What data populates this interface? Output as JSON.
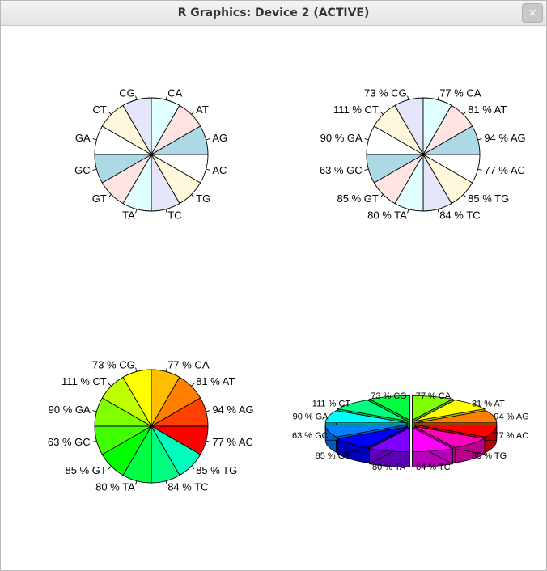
{
  "window": {
    "title": "R Graphics: Device 2 (ACTIVE)",
    "close_label": "×",
    "close_icon": "close-icon"
  },
  "chart_data": [
    {
      "type": "pie",
      "style": "2d",
      "categories": [
        "AC",
        "TG",
        "TC",
        "TA",
        "GT",
        "GC",
        "GA",
        "CT",
        "CG",
        "CA",
        "AT",
        "AG"
      ],
      "labels": [
        "AC",
        "TG",
        "TC",
        "TA",
        "GT",
        "GC",
        "GA",
        "CT",
        "CG",
        "CA",
        "AT",
        "AG"
      ],
      "values": [
        1,
        1,
        1,
        1,
        1,
        1,
        1,
        1,
        1,
        1,
        1,
        1
      ],
      "colors": [
        "#ffffff",
        "#fff8dc",
        "#e6e6fa",
        "#e0ffff",
        "#ffe4e1",
        "#add8e6",
        "#ffffff",
        "#fff8dc",
        "#e6e6fa",
        "#e0ffff",
        "#ffe4e1",
        "#add8e6"
      ],
      "start_angle": 0,
      "direction": "clockwise"
    },
    {
      "type": "pie",
      "style": "2d",
      "categories": [
        "AC",
        "TG",
        "TC",
        "TA",
        "GT",
        "GC",
        "GA",
        "CT",
        "CG",
        "CA",
        "AT",
        "AG"
      ],
      "labels": [
        "77 % AC",
        "85 % TG",
        "84 % TC",
        "80 % TA",
        "85 % GT",
        "63 % GC",
        "90 % GA",
        "111 % CT",
        "73 % CG",
        "77 % CA",
        "81 % AT",
        "94 % AG"
      ],
      "values": [
        1,
        1,
        1,
        1,
        1,
        1,
        1,
        1,
        1,
        1,
        1,
        1
      ],
      "colors": [
        "#ffffff",
        "#fff8dc",
        "#e6e6fa",
        "#e0ffff",
        "#ffe4e1",
        "#add8e6",
        "#ffffff",
        "#fff8dc",
        "#e6e6fa",
        "#e0ffff",
        "#ffe4e1",
        "#add8e6"
      ],
      "start_angle": 0,
      "direction": "clockwise"
    },
    {
      "type": "pie",
      "style": "2d",
      "categories": [
        "AC",
        "TG",
        "TC",
        "TA",
        "GT",
        "GC",
        "GA",
        "CT",
        "CG",
        "CA",
        "AT",
        "AG"
      ],
      "labels": [
        "77 % AC",
        "85 % TG",
        "84 % TC",
        "80 % TA",
        "85 % GT",
        "63 % GC",
        "90 % GA",
        "111 % CT",
        "73 % CG",
        "77 % CA",
        "81 % AT",
        "94 % AG"
      ],
      "values": [
        1,
        1,
        1,
        1,
        1,
        1,
        1,
        1,
        1,
        1,
        1,
        1
      ],
      "colors": [
        "#ff0000",
        "#00ffbf",
        "#00ff80",
        "#00ff40",
        "#00ff00",
        "#40ff00",
        "#80ff00",
        "#bfff00",
        "#ffff00",
        "#ffbf00",
        "#ff8000",
        "#ff4000"
      ],
      "start_angle": 0,
      "direction": "clockwise"
    },
    {
      "type": "pie",
      "style": "3d",
      "exploded": true,
      "categories": [
        "AC",
        "TG",
        "TC",
        "TA",
        "GT",
        "GC",
        "GA",
        "CT",
        "CG",
        "CA",
        "AT",
        "AG"
      ],
      "labels": [
        "77 % AC",
        "85 % TG",
        "84 % TC",
        "80 % TA",
        "85 % GT",
        "63 % GC",
        "90 % GA",
        "111 % CT",
        "73 % CG",
        "77 % CA",
        "81 % AT",
        "94 % AG"
      ],
      "values": [
        1,
        1,
        1,
        1,
        1,
        1,
        1,
        1,
        1,
        1,
        1,
        1
      ],
      "colors": [
        "#ff0000",
        "#ff00bf",
        "#ff00ff",
        "#8000ff",
        "#0000ff",
        "#0080ff",
        "#00ffff",
        "#00ff80",
        "#00ff40",
        "#80ff00",
        "#ffff00",
        "#ff8000"
      ],
      "start_angle": 0,
      "direction": "clockwise"
    }
  ]
}
